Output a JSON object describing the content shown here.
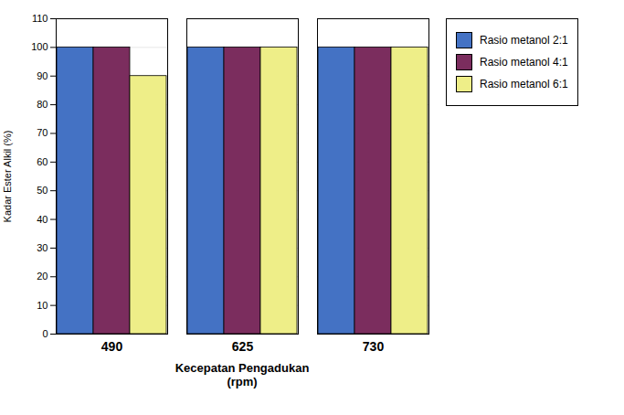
{
  "chart_data": {
    "type": "bar",
    "categories": [
      "490",
      "625",
      "730"
    ],
    "series": [
      {
        "name": "Rasio metanol 2:1",
        "color": "#4472C4",
        "values": [
          100,
          100,
          100
        ]
      },
      {
        "name": "Rasio metanol 4:1",
        "color": "#7B2D5E",
        "values": [
          100,
          100,
          100
        ]
      },
      {
        "name": "Rasio metanol 6:1",
        "color": "#EEEE88",
        "values": [
          90,
          100,
          100
        ]
      }
    ],
    "ylabel": "Kadar Ester Alkil (%)",
    "xlabel": "Kecepatan Pengadukan\n(rpm)",
    "ylim": [
      0,
      110
    ],
    "yticks": [
      0,
      10,
      20,
      30,
      40,
      50,
      60,
      70,
      80,
      90,
      100,
      110
    ],
    "grid": true,
    "legend": "right"
  }
}
